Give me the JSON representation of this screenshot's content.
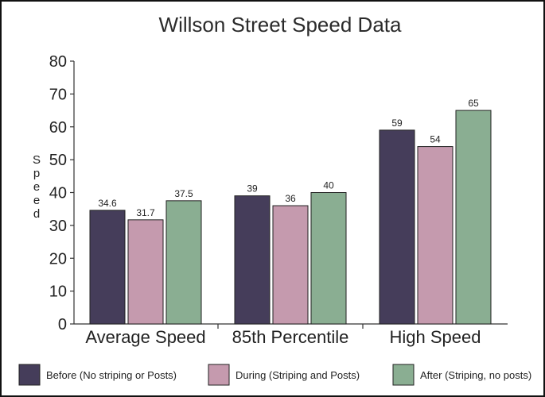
{
  "chart_data": {
    "type": "bar",
    "title": "Willson Street Speed Data",
    "ylabel": "Speed",
    "xlabel": "",
    "ylim": [
      0,
      80
    ],
    "yticks": [
      0,
      10,
      20,
      30,
      40,
      50,
      60,
      70,
      80
    ],
    "categories": [
      "Average Speed",
      "85th Percentile",
      "High Speed"
    ],
    "series": [
      {
        "name": "Before (No striping or Posts)",
        "values": [
          34.6,
          39,
          59
        ],
        "color": "#453d5a"
      },
      {
        "name": "During (Striping and Posts)",
        "values": [
          31.7,
          36,
          54
        ],
        "color": "#c59aae"
      },
      {
        "name": "After (Striping, no posts)",
        "values": [
          37.5,
          40,
          65
        ],
        "color": "#8aae92"
      }
    ],
    "data_labels": true,
    "grid": false,
    "legend_position": "bottom"
  }
}
